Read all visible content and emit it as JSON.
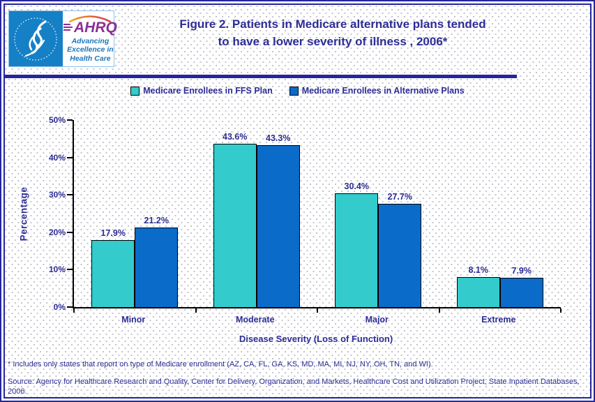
{
  "header": {
    "title_line1": "Figure 2. Patients in Medicare alternative plans tended",
    "title_line2": "to have a lower severity of illness , 2006*",
    "logo": {
      "abbr": "AHRQ",
      "tagline_line1": "Advancing",
      "tagline_line2": "Excellence in",
      "tagline_line3": "Health Care"
    }
  },
  "chart_data": {
    "type": "bar",
    "title": "Figure 2. Patients in Medicare alternative plans tended to have a lower severity of illness , 2006*",
    "categories": [
      "Minor",
      "Moderate",
      "Major",
      "Extreme"
    ],
    "series": [
      {
        "name": "Medicare Enrollees in FFS Plan",
        "color": "#33CBCC",
        "values": [
          17.9,
          43.6,
          30.4,
          8.1
        ]
      },
      {
        "name": "Medicare Enrollees in Alternative Plans",
        "color": "#0A6BC8",
        "values": [
          21.2,
          43.3,
          27.7,
          7.9
        ]
      }
    ],
    "xlabel": "Disease Severity (Loss of Function)",
    "ylabel": "Percentage",
    "ylim": [
      0,
      50
    ],
    "ytick_step": 10,
    "ytick_suffix": "%",
    "value_label_suffix": "%",
    "legend_position": "top",
    "grid": false
  },
  "footnotes": {
    "note": "* Includes only states that report on type of Medicare enrollment (AZ, CA, FL, GA, KS, MD, MA, MI, NJ, NY, OH, TN, and WI).",
    "source": "Source: Agency for Healthcare Research and Quality, Center for Delivery, Organization, and Markets, Healthcare Cost and Utilization Project, State Inpatient Databases, 2006."
  },
  "colors": {
    "navy_text": "#2D2D96",
    "border_navy": "#26269B",
    "axis_black": "#000000",
    "ffs_bar": "#33CBCC",
    "alt_bar": "#0A6BC8",
    "logo_blue": "#1580C6",
    "logo_purple": "#8B2F97",
    "logo_tagline_blue": "#1B75BC"
  }
}
